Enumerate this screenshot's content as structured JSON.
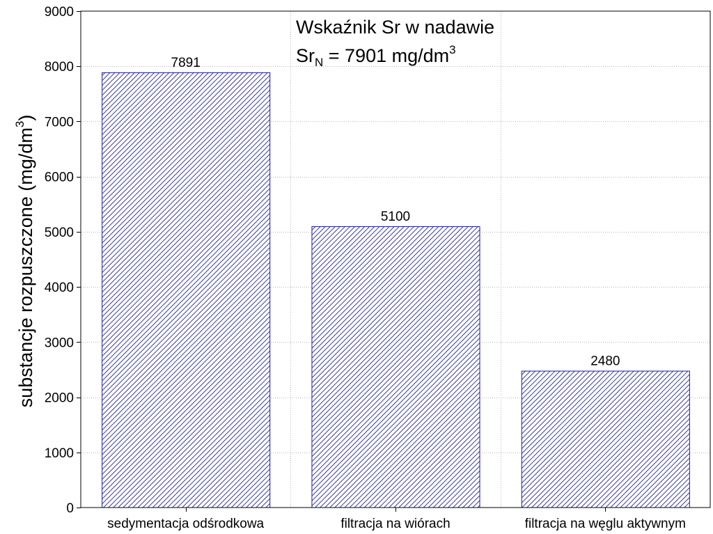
{
  "chart_data": {
    "type": "bar",
    "title": "",
    "xlabel": "",
    "ylabel": {
      "text": "substancje rozpuszczone (mg/dm",
      "superscript": "3",
      "suffix": ")"
    },
    "categories": [
      "sedymentacja odśrodkowa",
      "filtracja na wiórach",
      "filtracja na węglu aktywnym"
    ],
    "values": [
      7891,
      5100,
      2480
    ],
    "data_labels": [
      "7891",
      "5100",
      "2480"
    ],
    "ylim": [
      0,
      9000
    ],
    "yticks": [
      0,
      1000,
      2000,
      3000,
      4000,
      5000,
      6000,
      7000,
      8000,
      9000
    ],
    "ytick_labels": [
      "0",
      "1000",
      "2000",
      "3000",
      "4000",
      "5000",
      "6000",
      "7000",
      "8000",
      "9000"
    ],
    "grid": true,
    "annotation": {
      "line1": "Wskaźnik Sr  w nadawie",
      "line2_main": "Sr",
      "line2_sub": "N",
      "line2_rest": " = 7901 mg/dm",
      "line2_sup": "3"
    },
    "colors": {
      "bar_edge": "#1a1aa8",
      "hatch": "#3b3b9a",
      "grid": "#b4b4b4",
      "axis": "#000000"
    }
  }
}
